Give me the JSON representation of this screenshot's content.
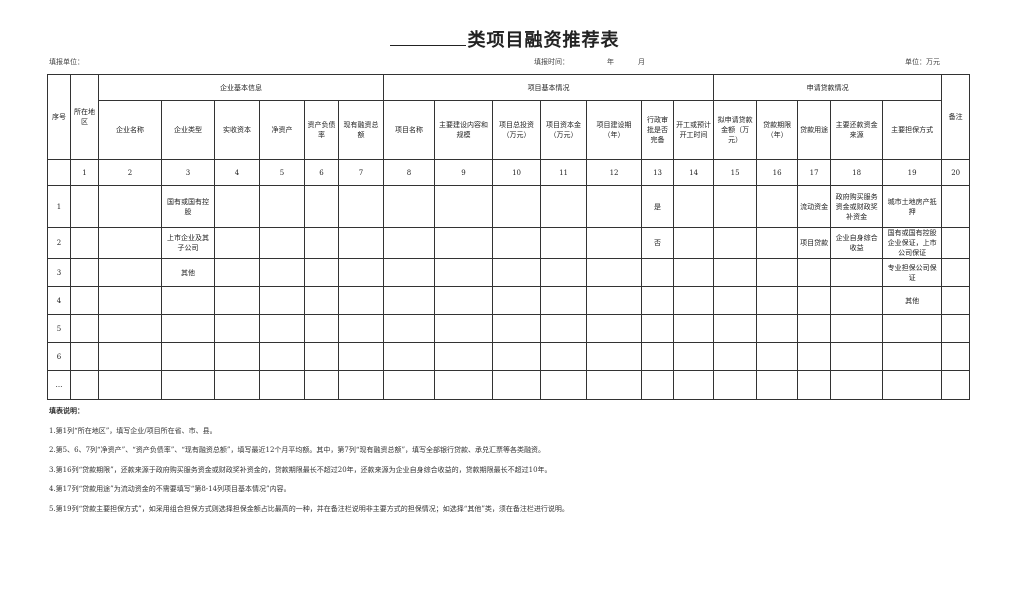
{
  "title": {
    "suffix": "类项目融资推荐表"
  },
  "meta": {
    "unit_label": "填报单位：",
    "time_label": "填报时间：",
    "year": "年",
    "month": "月",
    "currency": "单位：万元"
  },
  "groups": {
    "seq": "序号",
    "region": "所在地区",
    "enterprise": "企业基本信息",
    "project": "项目基本情况",
    "loan": "申请贷款情况",
    "remark": "备注"
  },
  "headers": [
    "企业名称",
    "企业类型",
    "实收资本",
    "净资产",
    "资产负债率",
    "现有融资总额",
    "项目名称",
    "主要建设内容和规模",
    "项目总投资（万元）",
    "项目资本金（万元）",
    "项目建设期（年）",
    "行政审批是否完备",
    "开工或预计开工时间",
    "拟申请贷款金额（万元）",
    "贷款期限（年）",
    "贷款用途",
    "主要还款资金来源",
    "主要担保方式"
  ],
  "col_numbers": [
    "",
    "1",
    "2",
    "3",
    "4",
    "5",
    "6",
    "7",
    "8",
    "9",
    "10",
    "11",
    "12",
    "13",
    "14",
    "15",
    "16",
    "17",
    "18",
    "19",
    "20"
  ],
  "rows": [
    [
      "1",
      "",
      "",
      "国有或国有控股",
      "",
      "",
      "",
      "",
      "",
      "",
      "",
      "",
      "",
      "是",
      "",
      "",
      "",
      "流动资金",
      "政府购买服务资金或财政奖补资金",
      "城市土地房产抵押",
      ""
    ],
    [
      "2",
      "",
      "",
      "上市企业及其子公司",
      "",
      "",
      "",
      "",
      "",
      "",
      "",
      "",
      "",
      "否",
      "",
      "",
      "",
      "项目贷款",
      "企业自身综合收益",
      "国有或国有控股企业保证，上市公司保证",
      ""
    ],
    [
      "3",
      "",
      "",
      "其他",
      "",
      "",
      "",
      "",
      "",
      "",
      "",
      "",
      "",
      "",
      "",
      "",
      "",
      "",
      "",
      "专业担保公司保证",
      ""
    ],
    [
      "4",
      "",
      "",
      "",
      "",
      "",
      "",
      "",
      "",
      "",
      "",
      "",
      "",
      "",
      "",
      "",
      "",
      "",
      "",
      "其他",
      ""
    ],
    [
      "5",
      "",
      "",
      "",
      "",
      "",
      "",
      "",
      "",
      "",
      "",
      "",
      "",
      "",
      "",
      "",
      "",
      "",
      "",
      "",
      ""
    ],
    [
      "6",
      "",
      "",
      "",
      "",
      "",
      "",
      "",
      "",
      "",
      "",
      "",
      "",
      "",
      "",
      "",
      "",
      "",
      "",
      "",
      ""
    ],
    [
      "…",
      "",
      "",
      "",
      "",
      "",
      "",
      "",
      "",
      "",
      "",
      "",
      "",
      "",
      "",
      "",
      "",
      "",
      "",
      "",
      ""
    ]
  ],
  "notes": {
    "heading": "填表说明：",
    "items": [
      "1.第1列“所在地区”，填写企业/项目所在省、市、县。",
      "2.第5、6、7列“净资产”、“资产负债率”、“现有融资总额”，填写最近12个月平均额。其中，第7列“现有融资总额”，填写全部银行贷款、承兑汇票等各类融资。",
      "3.第16列“贷款期限”，还款来源于政府购买服务资金或财政奖补资金的，贷款期限最长不超过20年，还款来源为企业自身综合收益的，贷款期限最长不超过10年。",
      "4.第17列“贷款用途”为流动资金的不需要填写“第8-14列项目基本情况”内容。",
      "5.第19列“贷款主要担保方式”，如采用组合担保方式则选择担保金额占比最高的一种，并在备注栏说明非主要方式的担保情况；如选择“其他”类，须在备注栏进行说明。"
    ]
  }
}
